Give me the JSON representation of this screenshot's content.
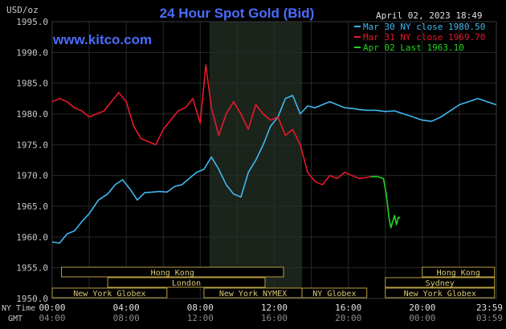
{
  "header": {
    "title": "24 Hour Spot Gold (Bid)",
    "currency": "USD/oz",
    "datetime": "April 02, 2023 18:49",
    "website": "www.kitco.com"
  },
  "legend": [
    {
      "label": "Mar 30 NY close 1980.50",
      "color": "#3fb8f0"
    },
    {
      "label": "Mar 31 NY close 1969.70",
      "color": "#e8182a"
    },
    {
      "label": "Apr 02 Last 1963.10",
      "color": "#22d422"
    }
  ],
  "colors": {
    "background": "#000000",
    "grid": "#2a2a2a",
    "shade": "#1b241b",
    "text": "#c8c8c8",
    "title": "#4a6cff",
    "session_border": "#b8a040"
  },
  "time_axis": {
    "ny_label": "NY Time",
    "gmt_label": "GMT",
    "ny_ticks": [
      "00:00",
      "04:00",
      "08:00",
      "12:00",
      "16:00",
      "20:00",
      "23:59"
    ],
    "gmt_ticks": [
      "04:00",
      "08:00",
      "12:00",
      "16:00",
      "20:00",
      "00:00",
      "03:59"
    ]
  },
  "sessions": [
    {
      "name": "Hong Kong",
      "start": 0.5,
      "end": 12.5,
      "row": 0
    },
    {
      "name": "Hong Kong",
      "start": 20.0,
      "end": 23.9,
      "row": 0
    },
    {
      "name": "London",
      "start": 3.0,
      "end": 11.5,
      "row": 1
    },
    {
      "name": "Sydney",
      "start": 18.0,
      "end": 23.9,
      "row": 1
    },
    {
      "name": "New York Globex",
      "start": 0.0,
      "end": 6.2,
      "row": 2
    },
    {
      "name": "New York NYMEX",
      "start": 8.2,
      "end": 13.5,
      "row": 2
    },
    {
      "name": "NY Globex",
      "start": 13.5,
      "end": 17.0,
      "row": 2
    },
    {
      "name": "New York Globex",
      "start": 18.0,
      "end": 23.9,
      "row": 2
    }
  ],
  "chart_data": {
    "type": "line",
    "title": "24 Hour Spot Gold (Bid)",
    "ylabel": "USD/oz",
    "xlim": [
      0,
      24
    ],
    "ylim": [
      1950,
      1995
    ],
    "yticks": [
      1950,
      1955,
      1960,
      1965,
      1970,
      1975,
      1980,
      1985,
      1990,
      1995
    ],
    "shaded_range": [
      8.5,
      13.5
    ],
    "series": [
      {
        "name": "Mar 30 NY close 1980.50",
        "color": "#3fb8f0",
        "x": [
          0,
          0.4,
          0.8,
          1.2,
          1.6,
          2.0,
          2.5,
          3.0,
          3.4,
          3.8,
          4.2,
          4.6,
          5.0,
          5.4,
          5.8,
          6.2,
          6.6,
          7.0,
          7.4,
          7.8,
          8.2,
          8.6,
          9.0,
          9.4,
          9.8,
          10.2,
          10.6,
          11.0,
          11.4,
          11.8,
          12.2,
          12.6,
          13.0,
          13.4,
          13.8,
          14.2,
          14.6,
          15.0,
          15.4,
          15.8,
          16.2,
          16.6,
          17.0,
          17.5,
          18.0,
          18.5,
          19.0,
          19.5,
          20.0,
          20.5,
          21.0,
          21.5,
          22.0,
          22.5,
          23.0,
          23.5,
          23.99
        ],
        "y": [
          1959.2,
          1959.0,
          1960.5,
          1961.0,
          1962.5,
          1963.8,
          1966.0,
          1967.0,
          1968.5,
          1969.3,
          1967.8,
          1966.0,
          1967.2,
          1967.3,
          1967.4,
          1967.3,
          1968.2,
          1968.5,
          1969.5,
          1970.5,
          1971.0,
          1973.0,
          1971.0,
          1968.5,
          1967.0,
          1966.5,
          1970.5,
          1972.5,
          1975.0,
          1978.0,
          1979.5,
          1982.5,
          1983.0,
          1980.0,
          1981.3,
          1981.0,
          1981.5,
          1982.0,
          1981.5,
          1981.0,
          1980.9,
          1980.7,
          1980.6,
          1980.6,
          1980.4,
          1980.5,
          1980.0,
          1979.5,
          1979.0,
          1978.8,
          1979.5,
          1980.5,
          1981.5,
          1982.0,
          1982.5,
          1982.0,
          1981.5
        ]
      },
      {
        "name": "Mar 31 NY close 1969.70",
        "color": "#e8182a",
        "x": [
          0,
          0.4,
          0.8,
          1.2,
          1.6,
          2.0,
          2.4,
          2.8,
          3.2,
          3.6,
          4.0,
          4.4,
          4.8,
          5.2,
          5.6,
          6.0,
          6.4,
          6.8,
          7.2,
          7.6,
          8.0,
          8.3,
          8.6,
          9.0,
          9.4,
          9.8,
          10.2,
          10.6,
          11.0,
          11.4,
          11.8,
          12.2,
          12.6,
          13.0,
          13.4,
          13.8,
          14.2,
          14.6,
          15.0,
          15.4,
          15.8,
          16.2,
          16.6,
          17.0,
          17.2
        ],
        "y": [
          1982.0,
          1982.5,
          1982.0,
          1981.0,
          1980.5,
          1979.5,
          1980.0,
          1980.5,
          1982.0,
          1983.5,
          1982.0,
          1978.0,
          1976.0,
          1975.5,
          1975.0,
          1977.5,
          1979.0,
          1980.5,
          1981.0,
          1982.5,
          1978.5,
          1988.0,
          1981.0,
          1976.5,
          1980.0,
          1982.0,
          1980.0,
          1977.5,
          1981.5,
          1980.0,
          1979.0,
          1979.5,
          1976.5,
          1977.5,
          1975.0,
          1970.5,
          1969.0,
          1968.5,
          1970.0,
          1969.5,
          1970.5,
          1970.0,
          1969.5,
          1969.7,
          1969.8
        ]
      },
      {
        "name": "Apr 02 Last 1963.10",
        "color": "#22d422",
        "x": [
          17.2,
          17.6,
          17.9,
          18.05,
          18.2,
          18.3,
          18.4,
          18.5,
          18.6,
          18.7,
          18.8
        ],
        "y": [
          1969.8,
          1969.8,
          1969.5,
          1967.0,
          1963.0,
          1961.5,
          1962.5,
          1963.5,
          1962.0,
          1963.2,
          1963.1
        ]
      }
    ]
  }
}
